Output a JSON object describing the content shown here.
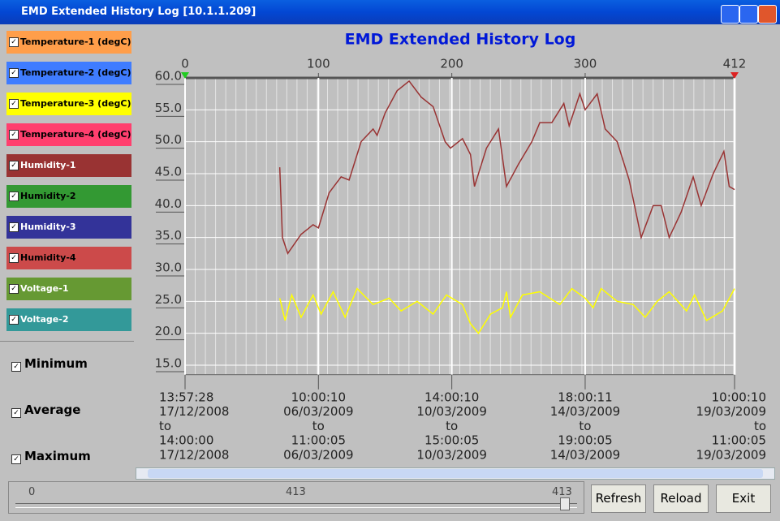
{
  "window": {
    "title": "EMD Extended History Log [10.1.1.209]"
  },
  "chart_data": {
    "type": "line",
    "title": "EMD Extended History Log",
    "xlim": [
      0,
      412
    ],
    "xticks": [
      0,
      100,
      200,
      300,
      412
    ],
    "ylim": [
      13.5,
      60
    ],
    "yticks": [
      {
        "value": 15,
        "label": "15.0"
      },
      {
        "value": 20,
        "label": "20.0"
      },
      {
        "value": 25,
        "label": "25.0"
      },
      {
        "value": 30,
        "label": "30.0"
      },
      {
        "value": 35,
        "label": "35.0"
      },
      {
        "value": 40,
        "label": "40.0"
      },
      {
        "value": 45,
        "label": "45.0"
      },
      {
        "value": 50,
        "label": "50.0"
      },
      {
        "value": 55,
        "label": "55.0"
      },
      {
        "value": 60,
        "label": "60.0"
      }
    ],
    "grid": true,
    "xlabels": [
      {
        "value": 0,
        "lines": [
          "13:57:28",
          "17/12/2008",
          "to",
          "14:00:00",
          "17/12/2008"
        ]
      },
      {
        "value": 100,
        "lines": [
          "10:00:10",
          "06/03/2009",
          "to",
          "11:00:05",
          "06/03/2009"
        ]
      },
      {
        "value": 200,
        "lines": [
          "14:00:10",
          "10/03/2009",
          "to",
          "15:00:05",
          "10/03/2009"
        ]
      },
      {
        "value": 300,
        "lines": [
          "18:00:11",
          "14/03/2009",
          "to",
          "19:00:05",
          "14/03/2009"
        ]
      },
      {
        "value": 412,
        "lines": [
          "10:00:10",
          "19/03/2009",
          "to",
          "11:00:05",
          "19/03/2009"
        ]
      }
    ],
    "series": [
      {
        "name": "Temperature-1 (degC)",
        "color": "#ff9e4a",
        "label_color": "#000000",
        "checked": true
      },
      {
        "name": "Temperature-2 (degC)",
        "color": "#3f7cff",
        "label_color": "#000000",
        "checked": true
      },
      {
        "name": "Temperature-3 (degC)",
        "color": "#ffff00",
        "label_color": "#000000",
        "checked": true,
        "x": [
          71,
          75,
          80,
          87,
          96,
          102,
          111,
          120,
          129,
          141,
          153,
          162,
          174,
          186,
          196,
          208,
          214,
          220,
          229,
          238,
          241,
          244,
          253,
          266,
          281,
          290,
          300,
          306,
          312,
          324,
          336,
          345,
          354,
          363,
          376,
          382,
          391,
          403,
          412
        ],
        "values": [
          25.5,
          22,
          26,
          22.5,
          26,
          23,
          26.5,
          22.5,
          27,
          24.5,
          25.5,
          23.5,
          25,
          23,
          26,
          24.5,
          21.5,
          20,
          23,
          24,
          26.5,
          22.5,
          26,
          26.5,
          24.5,
          27,
          25.5,
          24,
          27,
          25,
          24.5,
          22.5,
          25,
          26.5,
          23.5,
          26,
          22,
          23.5,
          27
        ]
      },
      {
        "name": "Temperature-4 (degC)",
        "color": "#ff3f6e",
        "label_color": "#000000",
        "checked": true
      },
      {
        "name": "Humidity-1",
        "color": "#993333",
        "label_color": "#ffffff",
        "checked": true,
        "x": [
          71,
          73,
          77,
          87,
          96,
          100,
          108,
          117,
          123,
          132,
          141,
          144,
          150,
          159,
          168,
          177,
          186,
          195,
          199,
          208,
          214,
          217,
          226,
          235,
          241,
          250,
          260,
          266,
          275,
          284,
          288,
          296,
          300,
          309,
          315,
          324,
          333,
          342,
          351,
          357,
          363,
          372,
          381,
          387,
          396,
          404,
          408,
          412
        ],
        "values": [
          46,
          35,
          32.5,
          35.5,
          37,
          36.5,
          42,
          44.5,
          44,
          50,
          52,
          51,
          54.5,
          58,
          59.5,
          57,
          55.5,
          50,
          49,
          50.5,
          48,
          43,
          49,
          52,
          43,
          46.5,
          50,
          53,
          53,
          56,
          52.5,
          57.5,
          55,
          57.5,
          52,
          50,
          44,
          35,
          40,
          40,
          35,
          39,
          44.5,
          40,
          45,
          48.5,
          43,
          42.5
        ]
      },
      {
        "name": "Humidity-2",
        "color": "#339933",
        "label_color": "#000000",
        "checked": true
      },
      {
        "name": "Humidity-3",
        "color": "#333399",
        "label_color": "#ffffff",
        "checked": true
      },
      {
        "name": "Humidity-4",
        "color": "#cc4a4a",
        "label_color": "#000000",
        "checked": true
      },
      {
        "name": "Voltage-1",
        "color": "#669933",
        "label_color": "#ffffff",
        "checked": true
      },
      {
        "name": "Voltage-2",
        "color": "#339999",
        "label_color": "#ffffff",
        "checked": true
      }
    ]
  },
  "stats": [
    {
      "label": "Minimum",
      "checked": true
    },
    {
      "label": "Average",
      "checked": true
    },
    {
      "label": "Maximum",
      "checked": true
    }
  ],
  "slider": {
    "min": 0,
    "max": 413,
    "value": 413
  },
  "buttons": [
    "Refresh",
    "Reload",
    "Exit"
  ]
}
